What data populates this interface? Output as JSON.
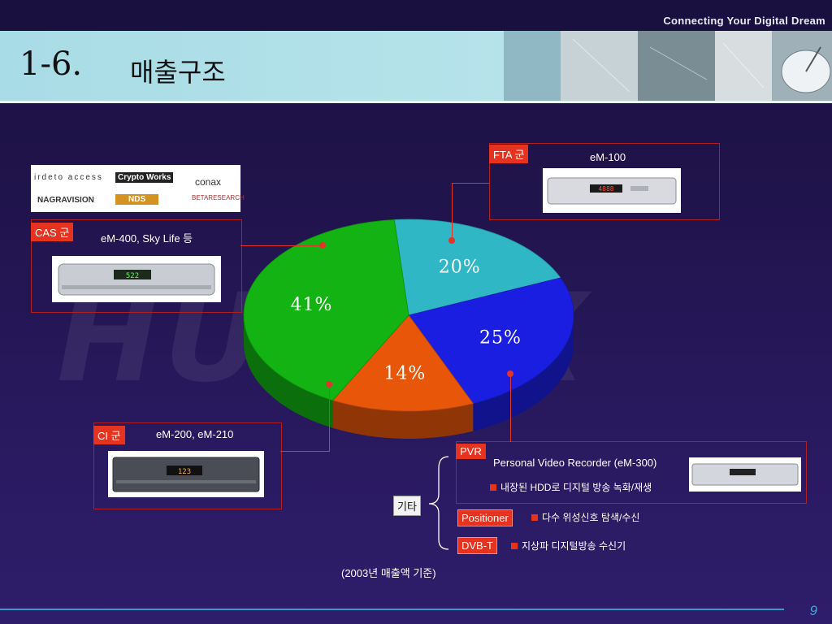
{
  "header": {
    "tagline": "Connecting Your Digital Dream",
    "title_number": "1-6.",
    "title": "매출구조"
  },
  "watermark": "HUMAX",
  "chart_data": {
    "type": "pie",
    "title": "",
    "slices": [
      {
        "label": "20%",
        "value": 20,
        "color": "#2fb7c6"
      },
      {
        "label": "25%",
        "value": 25,
        "color": "#1a1ee0"
      },
      {
        "label": "14%",
        "value": 14,
        "color": "#e8560a"
      },
      {
        "label": "41%",
        "value": 41,
        "color": "#12b312"
      }
    ]
  },
  "callouts": {
    "fta": {
      "tag": "FTA 군",
      "model": "eM-100"
    },
    "cas": {
      "tag": "CAS 군",
      "model": "eM-400, Sky Life 등"
    },
    "ci": {
      "tag": "CI 군",
      "model": "eM-200, eM-210"
    },
    "pvr": {
      "tag": "PVR",
      "model": "Personal Video Recorder (eM-300)",
      "desc": "내장된 HDD로 디지털 방송 녹화/재생"
    },
    "positioner": {
      "tag": "Positioner",
      "desc": "다수 위성신호 탐색/수신"
    },
    "dvbt": {
      "tag": "DVB-T",
      "desc": "지상파 디지털방송 수신기"
    },
    "etc_label": "기타"
  },
  "cas_logos": [
    "irdeto access",
    "Crypto Works",
    "conax",
    "NAGRAVISION",
    "NDS",
    "BETARESEARCH"
  ],
  "device_displays": {
    "fta": "4888",
    "cas": "522",
    "ci": "123"
  },
  "footnote": "(2003년 매출액 기준)",
  "page_number": "9",
  "colors": {
    "accent_red": "#e53320",
    "title_band": "#b6e3ea",
    "bottom_line": "#3d98c8"
  }
}
